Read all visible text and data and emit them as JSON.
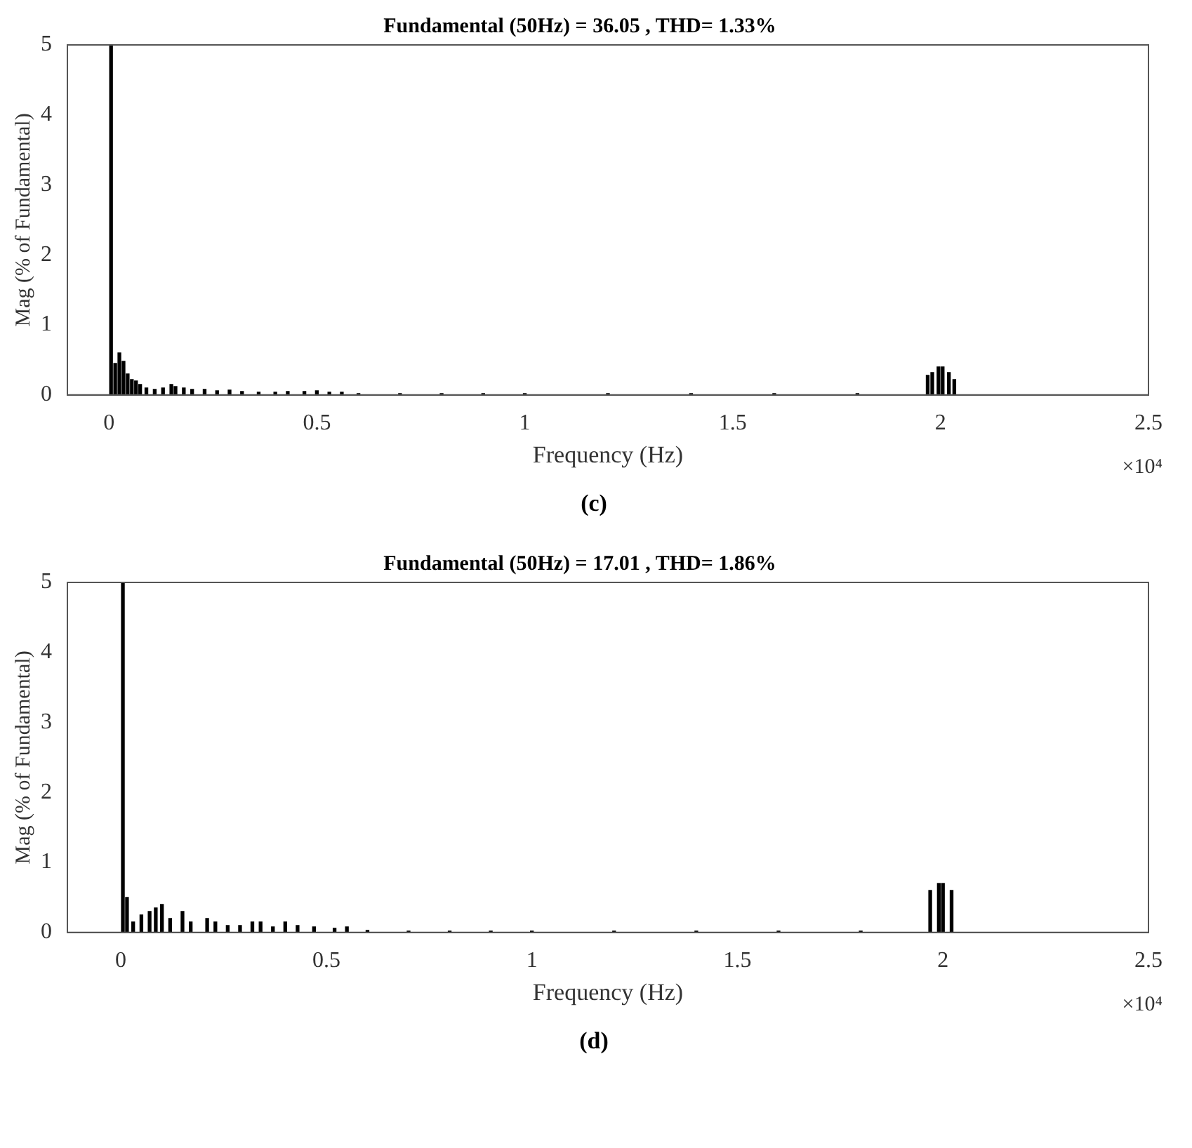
{
  "chart_data": [
    {
      "type": "bar",
      "title": "Fundamental (50Hz) = 36.05 , THD= 1.33%",
      "xlabel": "Frequency (Hz)",
      "ylabel": "Mag (% of Fundamental)",
      "color": "#000000",
      "x": [
        0.005,
        0.015,
        0.025,
        0.035,
        0.045,
        0.055,
        0.065,
        0.075,
        0.09,
        0.11,
        0.13,
        0.15,
        0.16,
        0.18,
        0.2,
        0.23,
        0.26,
        0.29,
        0.32,
        0.36,
        0.4,
        0.43,
        0.47,
        0.5,
        0.53,
        0.56,
        0.6,
        0.7,
        0.8,
        0.9,
        1,
        1.2,
        1.4,
        1.6,
        1.8,
        1.969,
        1.98,
        1.995,
        2.005,
        2.02,
        2.033
      ],
      "values": [
        5,
        0.45,
        0.6,
        0.48,
        0.3,
        0.22,
        0.2,
        0.15,
        0.1,
        0.08,
        0.1,
        0.15,
        0.12,
        0.1,
        0.08,
        0.08,
        0.06,
        0.07,
        0.05,
        0.04,
        0.04,
        0.05,
        0.05,
        0.06,
        0.04,
        0.04,
        0.02,
        0.02,
        0.02,
        0.02,
        0.02,
        0.02,
        0.02,
        0.02,
        0.02,
        0.28,
        0.32,
        0.4,
        0.4,
        0.32,
        0.22
      ],
      "xlim": [
        -0.1,
        2.5
      ],
      "xticks": [
        0,
        0.5,
        1,
        1.5,
        2,
        2.5
      ],
      "ylim": [
        0,
        5
      ],
      "yticks": [
        0,
        1,
        2,
        3,
        4,
        5
      ],
      "annotations": [
        "×10⁴",
        "(c)"
      ]
    },
    {
      "type": "bar",
      "title": "Fundamental (50Hz) = 17.01 , THD= 1.86%",
      "xlabel": "Frequency (Hz)",
      "ylabel": "Mag (% of Fundamental)",
      "color": "#000000",
      "x": [
        0.005,
        0.015,
        0.03,
        0.05,
        0.07,
        0.085,
        0.1,
        0.12,
        0.15,
        0.17,
        0.21,
        0.23,
        0.26,
        0.29,
        0.32,
        0.34,
        0.37,
        0.4,
        0.43,
        0.47,
        0.52,
        0.55,
        0.6,
        0.7,
        0.8,
        0.9,
        1,
        1.2,
        1.4,
        1.6,
        1.8,
        1.969,
        1.99,
        2,
        2.021
      ],
      "values": [
        5,
        0.5,
        0.15,
        0.25,
        0.3,
        0.35,
        0.4,
        0.2,
        0.3,
        0.15,
        0.2,
        0.15,
        0.1,
        0.1,
        0.15,
        0.15,
        0.08,
        0.15,
        0.1,
        0.08,
        0.06,
        0.08,
        0.03,
        0.02,
        0.02,
        0.02,
        0.02,
        0.02,
        0.02,
        0.02,
        0.02,
        0.6,
        0.7,
        0.7,
        0.6
      ],
      "xlim": [
        -0.13,
        2.5
      ],
      "xticks": [
        0,
        0.5,
        1,
        1.5,
        2,
        2.5
      ],
      "ylim": [
        0,
        5
      ],
      "yticks": [
        0,
        1,
        2,
        3,
        4,
        5
      ],
      "annotations": [
        "×10⁴",
        "(d)"
      ]
    }
  ]
}
